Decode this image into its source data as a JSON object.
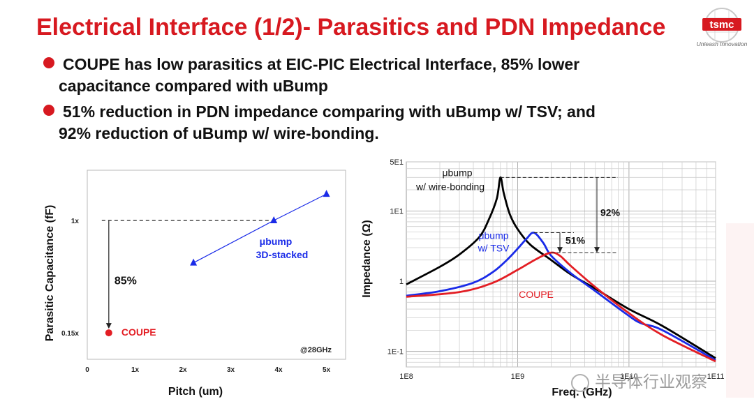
{
  "slide": {
    "title": "Electrical Interface (1/2)- Parasitics and PDN Impedance",
    "logo_text": "tsmc",
    "logo_tagline": "Unleash Innovation",
    "watermark": "半导体行业观察"
  },
  "bullets": [
    {
      "line1": "COUPE has low parasitics at EIC-PIC Electrical Interface, 85% lower",
      "line2": "capacitance compared with uBump"
    },
    {
      "line1": "51% reduction in PDN impedance comparing with uBump w/ TSV; and",
      "line2": "92% reduction of uBump w/ wire-bonding."
    }
  ],
  "colors": {
    "title": "#d71920",
    "coupe": "#e31e24",
    "ubump_tsv": "#1a2be8",
    "wire_bonding": "#000000"
  },
  "chart_data": [
    {
      "type": "scatter",
      "xlabel": "Pitch (um)",
      "ylabel": "Parasitic Capacitance (fF)",
      "x_ticks": [
        "0",
        "1x",
        "2x",
        "3x",
        "4x",
        "5x"
      ],
      "y_ticks": [
        {
          "label": "1x",
          "value": 1.0
        },
        {
          "label": "0.15x",
          "value": 0.15
        }
      ],
      "xlim": [
        0,
        5.4
      ],
      "ylim": [
        -0.05,
        1.38
      ],
      "grid": false,
      "series": [
        {
          "name": "μbump 3D-stacked",
          "label_line1": "μbump",
          "label_line2": "3D-stacked",
          "marker": "triangle",
          "color": "#1a2be8",
          "x": [
            2.22,
            3.9,
            5.0
          ],
          "y": [
            0.68,
            1.0,
            1.2
          ]
        },
        {
          "name": "COUPE",
          "marker": "circle",
          "color": "#e31e24",
          "x": [
            0.45
          ],
          "y": [
            0.15
          ]
        }
      ],
      "annotations": {
        "reduction": "85%",
        "condition": "@28GHz"
      }
    },
    {
      "type": "line",
      "xlabel": "Freq. (GHz)",
      "ylabel": "Impedance (Ω)",
      "x_scale": "log",
      "y_scale": "log",
      "x_ticks": [
        "1E8",
        "1E9",
        "1E10",
        "1E11"
      ],
      "y_ticks": [
        "5E1",
        "1E1",
        "1",
        "1E-1"
      ],
      "xlim": [
        100000000.0,
        60000000000.0
      ],
      "ylim": [
        0.06,
        50
      ],
      "grid": true,
      "series": [
        {
          "name": "μbump w/ wire-bonding",
          "label_line1": "μbump",
          "label_line2": "w/ wire-bonding",
          "color": "#000000",
          "x": [
            100000000.0,
            200000000.0,
            300000000.0,
            450000000.0,
            550000000.0,
            650000000.0,
            700000000.0,
            750000000.0,
            850000000.0,
            1000000000.0,
            1300000000.0,
            2000000000.0,
            3000000000.0,
            5000000000.0,
            10000000000.0,
            20000000000.0,
            60000000000.0
          ],
          "y": [
            0.9,
            1.6,
            2.4,
            4.2,
            7.5,
            15,
            30,
            18,
            9,
            5.5,
            3.3,
            2.0,
            1.25,
            0.78,
            0.4,
            0.23,
            0.08
          ]
        },
        {
          "name": "μbump w/ TSV",
          "label_line1": "μbump",
          "label_line2": "w/ TSV",
          "color": "#1a2be8",
          "x": [
            100000000.0,
            200000000.0,
            400000000.0,
            600000000.0,
            800000000.0,
            1000000000.0,
            1200000000.0,
            1400000000.0,
            1700000000.0,
            2000000000.0,
            3000000000.0,
            5000000000.0,
            10000000000.0,
            13000000000.0,
            20000000000.0,
            60000000000.0
          ],
          "y": [
            0.62,
            0.72,
            0.95,
            1.35,
            2.0,
            2.9,
            4.0,
            4.9,
            3.5,
            2.3,
            1.3,
            0.72,
            0.32,
            0.25,
            0.2,
            0.075
          ]
        },
        {
          "name": "COUPE",
          "color": "#e31e24",
          "x": [
            100000000.0,
            300000000.0,
            600000000.0,
            1000000000.0,
            1500000000.0,
            2000000000.0,
            2400000000.0,
            3000000000.0,
            5000000000.0,
            10000000000.0,
            20000000000.0,
            60000000000.0
          ],
          "y": [
            0.6,
            0.7,
            0.95,
            1.45,
            2.1,
            2.55,
            2.3,
            1.65,
            0.82,
            0.35,
            0.17,
            0.072
          ]
        }
      ],
      "annotations": {
        "reduction_tsv": "51%",
        "reduction_wire": "92%"
      }
    }
  ]
}
